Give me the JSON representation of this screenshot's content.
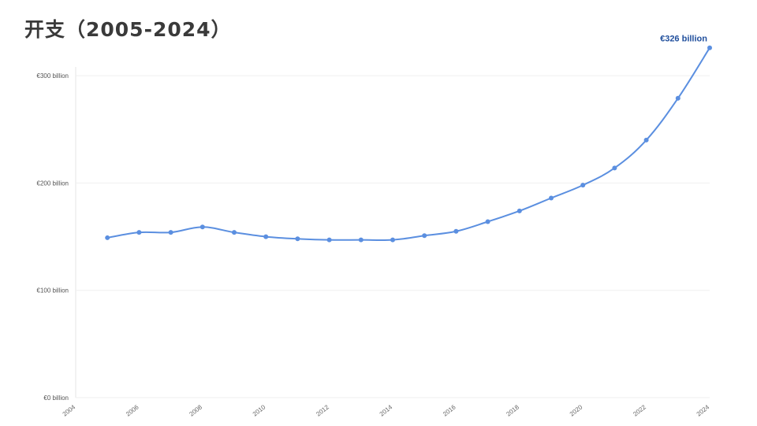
{
  "title": "开支（2005-2024）",
  "chart_data": {
    "type": "line",
    "title": "开支（2005-2024）",
    "x": [
      2005,
      2006,
      2007,
      2008,
      2009,
      2010,
      2011,
      2012,
      2013,
      2014,
      2015,
      2016,
      2017,
      2018,
      2019,
      2020,
      2021,
      2022,
      2023,
      2024
    ],
    "series": [
      {
        "values": [
          149,
          154,
          154,
          159,
          154,
          150,
          148,
          147,
          147,
          147,
          151,
          155,
          164,
          174,
          186,
          198,
          214,
          240,
          279,
          326
        ]
      }
    ],
    "ylim": [
      0,
      350
    ],
    "xlim": [
      2004,
      2024
    ],
    "y_ticks": [
      0,
      100,
      200,
      300
    ],
    "y_tick_labels": [
      "€0 billion",
      "€100 billion",
      "€200 billion",
      "€300 billion"
    ],
    "x_ticks": [
      "2004",
      "2006",
      "2008",
      "2010",
      "2012",
      "2014",
      "2016",
      "2018",
      "2020",
      "2022",
      "2024"
    ],
    "annotation": {
      "text": "€326 billion",
      "x": 2024,
      "y": 326
    },
    "line_color": "#5b8fe0",
    "label_color": "#1f4e9c",
    "grid": true
  }
}
